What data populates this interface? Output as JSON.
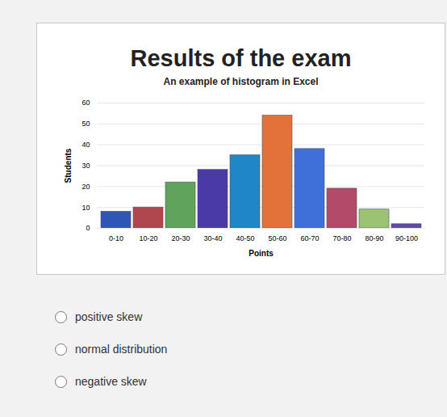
{
  "chart_data": {
    "type": "bar",
    "title": "Results of the exam",
    "subtitle": "An example of histogram in Excel",
    "x_label": "Points",
    "y_label": "Students",
    "categories": [
      "0-10",
      "10-20",
      "20-30",
      "30-40",
      "40-50",
      "50-60",
      "60-70",
      "70-80",
      "80-90",
      "90-100"
    ],
    "values": [
      8,
      10,
      22,
      28,
      35,
      54,
      38,
      19,
      9,
      2
    ],
    "colors": [
      "#2f55b8",
      "#b0474f",
      "#5fa35c",
      "#4a3aa8",
      "#1f86c8",
      "#e2713a",
      "#3f6fd8",
      "#b44a6a",
      "#9cc273",
      "#5f4aa8"
    ],
    "ylim": [
      0,
      60
    ],
    "yticks": [
      0,
      10,
      20,
      30,
      40,
      50,
      60
    ],
    "grid": true
  },
  "options": [
    "positive skew",
    "normal distribution",
    "negative skew"
  ]
}
